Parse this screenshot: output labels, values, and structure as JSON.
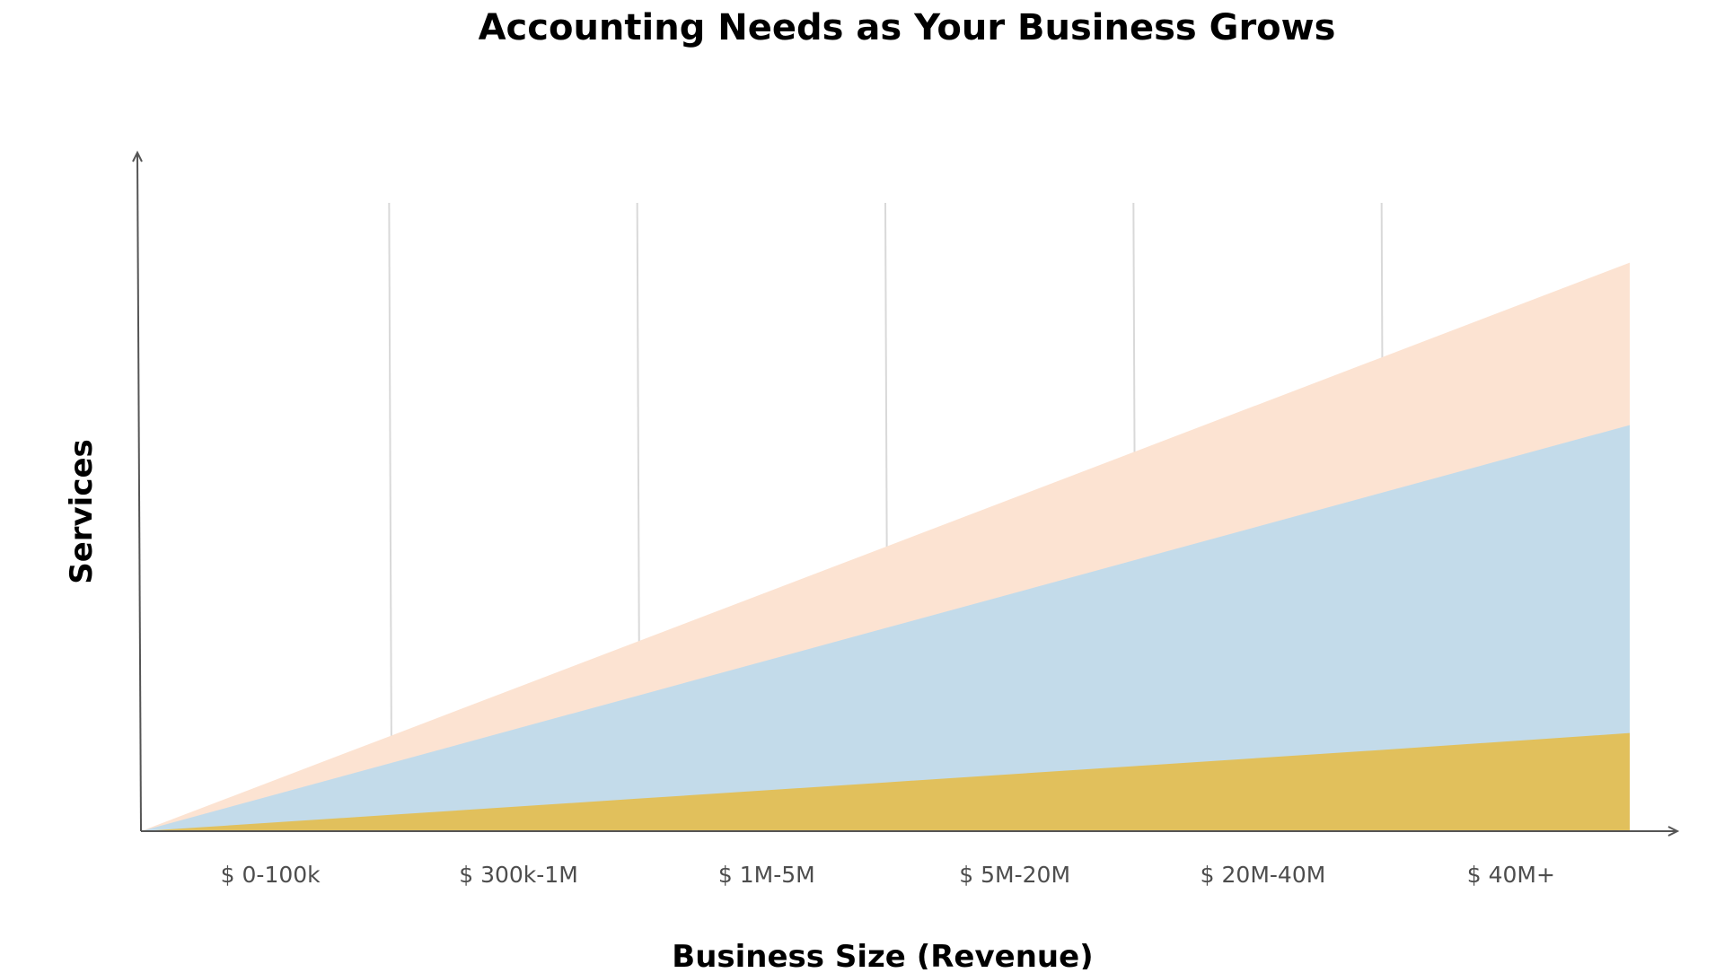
{
  "chart_data": {
    "type": "area",
    "title": "Accounting Needs as Your Business Grows",
    "xlabel": "Business Size (Revenue)",
    "ylabel": "Services",
    "categories": [
      "$ 0-100k",
      "$ 300k-1M",
      "$ 1M-5M",
      "$ 5M-20M",
      "$ 20M-40M",
      "$ 40M+"
    ],
    "x": [
      0,
      1,
      2,
      3,
      4,
      5,
      6
    ],
    "ylim": [
      0,
      100
    ],
    "grid": "vertical",
    "series": [
      {
        "color": "#fce3d2",
        "values": [
          0,
          14,
          28,
          42,
          56,
          70,
          84
        ]
      },
      {
        "color": "#c3dbea",
        "values": [
          0,
          10,
          20,
          30,
          40,
          50,
          60
        ]
      },
      {
        "color": "#e1c05c",
        "values": [
          0,
          2.4,
          4.8,
          7.2,
          9.6,
          12,
          14.5
        ]
      }
    ],
    "colors": {
      "axis": "#555555",
      "grid": "#d9d9d9",
      "title": "#000000",
      "tick_label": "#4d4d4d"
    }
  }
}
